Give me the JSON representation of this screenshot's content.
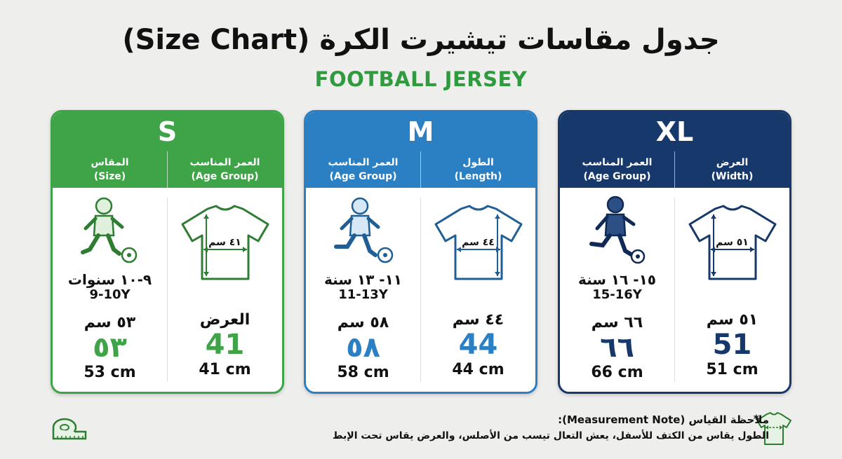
{
  "title": "جدول مقاسات تيشيرت الكرة (Size Chart)",
  "subtitle": "FOOTBALL JERSEY",
  "colors": {
    "green": "#3ea447",
    "blue": "#2b7fc3",
    "navy": "#17386b"
  },
  "cards": [
    {
      "size": "S",
      "col_left_ar": "المقاس",
      "col_left_en": "(Size)",
      "col_right_ar": "العمر المناسب",
      "col_right_en": "(Age Group)",
      "shirt_label": "٤١ سم",
      "age_ar": "٩-١٠ سنوات",
      "age_en": "9-10Y",
      "left_cm_ar": "٥٣ سم",
      "left_big": "٥٣",
      "left_cm_en": "53 cm",
      "right_label_ar": "العرض",
      "right_big": "41",
      "right_cm_en": "41 cm"
    },
    {
      "size": "M",
      "col_left_ar": "العمر المناسب",
      "col_left_en": "(Age Group)",
      "col_right_ar": "الطول",
      "col_right_en": "(Length)",
      "shirt_label": "٤٤ سم",
      "age_ar": "١١- ١٣ سنة",
      "age_en": "11-13Y",
      "left_cm_ar": "٥٨ سم",
      "left_big": "٥٨",
      "left_cm_en": "58 cm",
      "right_label_ar": "٤٤ سم",
      "right_big": "44",
      "right_cm_en": "44 cm"
    },
    {
      "size": "XL",
      "col_left_ar": "العمر المناسب",
      "col_left_en": "(Age Group)",
      "col_right_ar": "العرض",
      "col_right_en": "(Width)",
      "shirt_label": "٥١ سم",
      "age_ar": "١٥- ١٦ سنة",
      "age_en": "15-16Y",
      "left_cm_ar": "٦٦ سم",
      "left_big": "٦٦",
      "left_cm_en": "66 cm",
      "right_label_ar": "٥١ سم",
      "right_big": "51",
      "right_cm_en": "51 cm"
    }
  ],
  "note": {
    "title": "ملاحظة القياس (Measurement Note):",
    "star": "*",
    "text": "الطول يقاس من الكتف للأسفل، يعش التعال تيسب من الأصلس، والعرض يقاس تحت الإبط"
  },
  "icons": {
    "player": "football-player-icon",
    "shirt": "jersey-measure-icon",
    "tape": "measuring-tape-icon"
  }
}
